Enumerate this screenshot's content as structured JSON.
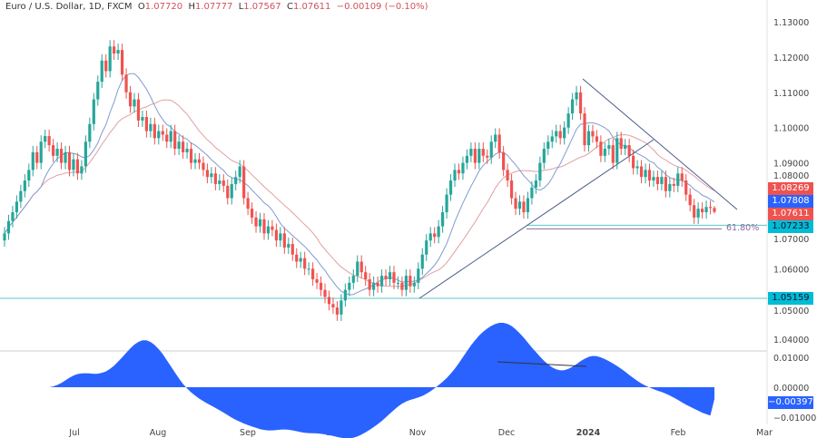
{
  "header": {
    "symbol": "Euro / U.S. Dollar, 1D, FXCM",
    "open_prefix": "O",
    "open": "1.07720",
    "high_prefix": "H",
    "high": "1.07777",
    "low_prefix": "L",
    "low": "1.07567",
    "close_prefix": "C",
    "close": "1.07611",
    "change": "−0.00109 (−0.10%)"
  },
  "colors": {
    "up": "#26a69a",
    "down": "#ef5350",
    "ma_fast": "#7f9bd0",
    "ma_slow": "#e0a0a0",
    "trendline": "#4a5a8a",
    "support": "#5fc6c6",
    "fib": "#8a6aa0",
    "osc": "#2962ff"
  },
  "chart_data": {
    "type": "candlestick",
    "price_axis": {
      "ticks": [
        "1.13000",
        "1.12000",
        "1.11000",
        "1.10000",
        "1.09000",
        "1.08000",
        "1.07000",
        "1.06000",
        "1.05000",
        "1.04000"
      ],
      "range": [
        1.037,
        1.132
      ]
    },
    "x_ticks": [
      "Jul",
      "Aug",
      "Sep",
      "Oct",
      "Nov",
      "Dec",
      "2024",
      "Feb",
      "Mar"
    ],
    "last_candle": {
      "open": 1.0772,
      "high": 1.07777,
      "low": 1.07567,
      "close": 1.07611
    },
    "closes": [
      1.07,
      1.0735,
      1.076,
      1.079,
      1.082,
      1.085,
      1.088,
      1.093,
      1.09,
      1.096,
      1.0976,
      1.095,
      1.092,
      1.094,
      1.09,
      1.093,
      1.088,
      1.091,
      1.087,
      1.089,
      1.096,
      1.101,
      1.108,
      1.113,
      1.119,
      1.116,
      1.123,
      1.121,
      1.122,
      1.115,
      1.11,
      1.106,
      1.108,
      1.102,
      1.103,
      1.099,
      1.101,
      1.097,
      1.099,
      1.098,
      1.096,
      1.099,
      1.094,
      1.096,
      1.093,
      1.094,
      1.09,
      1.091,
      1.09,
      1.088,
      1.086,
      1.087,
      1.084,
      1.085,
      1.0835,
      1.08,
      1.084,
      1.086,
      1.089,
      1.08,
      1.077,
      1.0745,
      1.072,
      1.074,
      1.07,
      1.072,
      1.071,
      1.068,
      1.07,
      1.066,
      1.067,
      1.064,
      1.062,
      1.063,
      1.06,
      1.06,
      1.057,
      1.056,
      1.054,
      1.052,
      1.05,
      1.049,
      1.047,
      1.051,
      1.054,
      1.056,
      1.058,
      1.062,
      1.059,
      1.057,
      1.054,
      1.056,
      1.055,
      1.058,
      1.057,
      1.059,
      1.056,
      1.056,
      1.054,
      1.058,
      1.055,
      1.056,
      1.06,
      1.064,
      1.068,
      1.07,
      1.069,
      1.072,
      1.076,
      1.081,
      1.085,
      1.088,
      1.087,
      1.09,
      1.092,
      1.094,
      1.09,
      1.094,
      1.092,
      1.0915,
      1.096,
      1.098,
      1.093,
      1.088,
      1.085,
      1.08,
      1.077,
      1.079,
      1.076,
      1.08,
      1.083,
      1.085,
      1.09,
      1.094,
      1.096,
      1.0975,
      1.099,
      1.097,
      1.1,
      1.104,
      1.108,
      1.11,
      1.104,
      1.095,
      1.099,
      1.0975,
      1.096,
      1.092,
      1.094,
      1.095,
      1.09,
      1.097,
      1.094,
      1.095,
      1.092,
      1.0885,
      1.089,
      1.086,
      1.088,
      1.085,
      1.086,
      1.084,
      1.086,
      1.082,
      1.084,
      1.0835,
      1.087,
      1.085,
      1.081,
      1.078,
      1.0745,
      1.077,
      1.076,
      1.0775,
      1.0772,
      1.07611
    ],
    "price_labels": [
      {
        "value": "1.08269",
        "color": "#ef5350"
      },
      {
        "value": "1.07808",
        "color": "#2962ff"
      },
      {
        "value": "1.07611",
        "color": "#ef5350"
      },
      {
        "value": "1.07233",
        "color": "#00bcd4"
      },
      {
        "value": "1.05159",
        "color": "#00bcd4"
      }
    ],
    "fib_label": "61.80%",
    "oscillator": {
      "ticks": [
        "0.01000",
        "0.00000",
        "−0.01000"
      ],
      "range": [
        -0.0105,
        0.0115
      ],
      "last_label": "−0.00397"
    }
  }
}
